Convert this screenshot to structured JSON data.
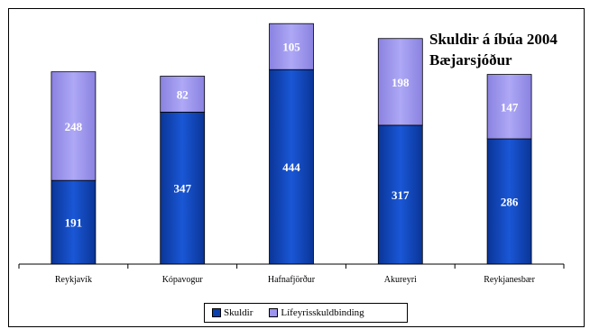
{
  "chart_data": {
    "type": "bar",
    "stacked": true,
    "title": "Skuldir á íbúa 2004",
    "subtitle": "Bæjarsjóður",
    "categories": [
      "Reykjavík",
      "Kópavogur",
      "Hafnafjörður",
      "Akureyri",
      "Reykjanesbær"
    ],
    "series": [
      {
        "name": "Skuldir",
        "values": [
          191,
          347,
          444,
          317,
          286
        ],
        "color": "#0a3fae"
      },
      {
        "name": "Lífeyrisskuldbinding",
        "values": [
          248,
          82,
          105,
          198,
          147
        ],
        "color": "#9b93ee"
      }
    ],
    "ylim": [
      0,
      570
    ],
    "grid": false,
    "legend": "bottom"
  }
}
